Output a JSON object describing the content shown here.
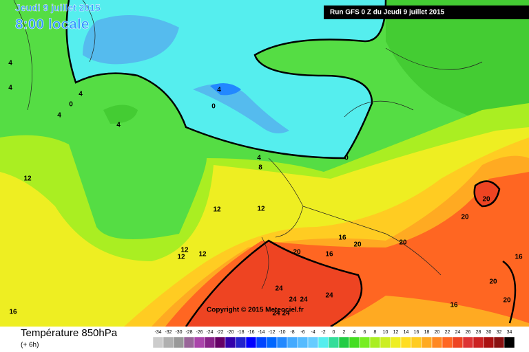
{
  "header": {
    "date": "Jeudi 9 juillet 2015",
    "time": "8:00 locale",
    "run": "Run GFS 0 Z du Jeudi 9 juillet 2015"
  },
  "copyright": "Copyright © 2015 Meteociel.fr",
  "legend": {
    "title": "Température 850hPa",
    "subtitle": "(+ 6h)",
    "ticks": [
      -34,
      -32,
      -30,
      -28,
      -26,
      -24,
      -22,
      -20,
      -18,
      -16,
      -14,
      -12,
      -10,
      -8,
      -6,
      -4,
      -2,
      0,
      2,
      4,
      6,
      8,
      10,
      12,
      14,
      16,
      18,
      20,
      22,
      24,
      26,
      28,
      30,
      32,
      34
    ],
    "colors": [
      "#cccccc",
      "#b0b0b0",
      "#999999",
      "#996699",
      "#aa44aa",
      "#882288",
      "#660066",
      "#3300aa",
      "#2222cc",
      "#0000ff",
      "#0044ff",
      "#0066ff",
      "#2288ff",
      "#44aaff",
      "#55bbff",
      "#66ccff",
      "#55eeee",
      "#33dd99",
      "#22cc44",
      "#44dd22",
      "#77ee22",
      "#aaee22",
      "#ccee22",
      "#eeee22",
      "#ffdd22",
      "#ffcc22",
      "#ffaa22",
      "#ff8822",
      "#ff6622",
      "#ee4422",
      "#dd3333",
      "#cc2222",
      "#aa1111",
      "#881111",
      "#000000"
    ]
  },
  "contour_labels": [
    "4",
    "4",
    "0",
    "4",
    "4",
    "4",
    "0",
    "0",
    "4",
    "8",
    "12",
    "12",
    "12",
    "12",
    "12",
    "12",
    "16",
    "16",
    "20",
    "20",
    "20",
    "20",
    "20",
    "16",
    "20",
    "24",
    "24",
    "24",
    "24",
    "24",
    "24",
    "16",
    "16",
    "20",
    "4"
  ]
}
